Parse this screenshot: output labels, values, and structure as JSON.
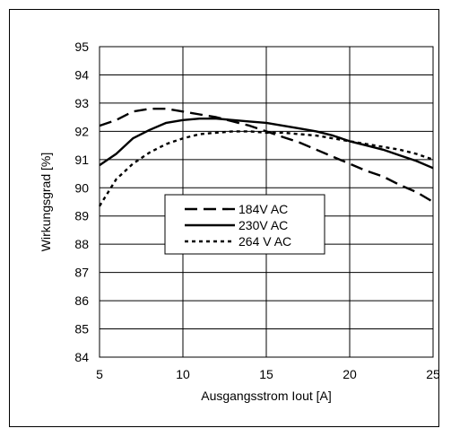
{
  "chart_data": {
    "type": "line",
    "title": "",
    "xlabel": "Ausgangsstrom Iout  [A]",
    "ylabel": "Wirkungsgrad [%]",
    "xlim": [
      5,
      25
    ],
    "ylim": [
      84,
      95
    ],
    "xticks": [
      5,
      10,
      15,
      20,
      25
    ],
    "yticks": [
      84,
      85,
      86,
      87,
      88,
      89,
      90,
      91,
      92,
      93,
      94,
      95
    ],
    "grid": true,
    "legend_position": "center-left",
    "series": [
      {
        "name": "184V AC",
        "style": "dashed",
        "x": [
          5,
          6,
          7,
          8,
          9,
          10,
          11,
          12,
          13,
          14,
          15,
          16,
          17,
          18,
          19,
          20,
          21,
          22,
          23,
          24,
          25
        ],
        "y": [
          92.2,
          92.4,
          92.7,
          92.8,
          92.8,
          92.7,
          92.6,
          92.5,
          92.35,
          92.2,
          92.0,
          91.8,
          91.6,
          91.35,
          91.1,
          90.85,
          90.6,
          90.4,
          90.1,
          89.85,
          89.5
        ]
      },
      {
        "name": "230V AC",
        "style": "solid",
        "x": [
          5,
          6,
          7,
          8,
          9,
          10,
          11,
          12,
          13,
          14,
          15,
          16,
          17,
          18,
          19,
          20,
          21,
          22,
          23,
          24,
          25
        ],
        "y": [
          90.8,
          91.2,
          91.75,
          92.05,
          92.3,
          92.4,
          92.45,
          92.45,
          92.4,
          92.35,
          92.3,
          92.2,
          92.1,
          92.0,
          91.85,
          91.65,
          91.5,
          91.35,
          91.15,
          90.95,
          90.7
        ]
      },
      {
        "name": "264 V AC",
        "style": "dotted",
        "x": [
          5,
          6,
          7,
          8,
          9,
          10,
          11,
          12,
          13,
          14,
          15,
          16,
          17,
          18,
          19,
          20,
          21,
          22,
          23,
          24,
          25
        ],
        "y": [
          89.35,
          90.3,
          90.85,
          91.25,
          91.55,
          91.75,
          91.9,
          91.95,
          92.0,
          92.0,
          91.95,
          91.95,
          91.9,
          91.85,
          91.75,
          91.65,
          91.55,
          91.45,
          91.35,
          91.2,
          91.0
        ]
      }
    ]
  }
}
